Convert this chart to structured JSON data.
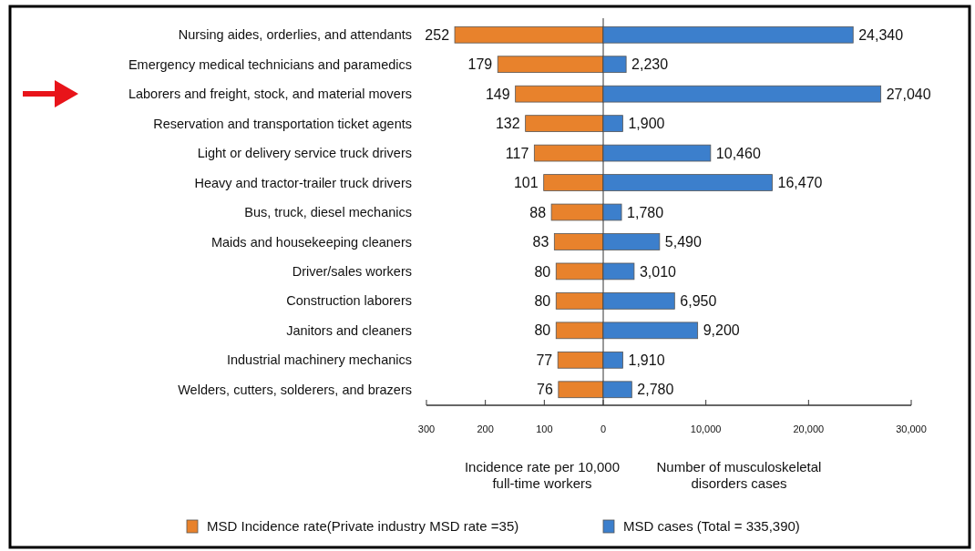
{
  "chart_data": [
    {
      "type": "bar",
      "orientation": "horizontal",
      "categories": [
        "Nursing aides, orderlies, and attendants",
        "Emergency medical technicians and paramedics",
        "Laborers and freight, stock, and material movers",
        "Reservation and transportation ticket agents",
        "Light or delivery service truck drivers",
        "Heavy and tractor-trailer truck drivers",
        "Bus, truck, diesel mechanics",
        "Maids and housekeeping cleaners",
        "Driver/sales workers",
        "Construction laborers",
        "Janitors and cleaners",
        "Industrial machinery mechanics",
        "Welders, cutters, solderers, and brazers"
      ],
      "series": [
        {
          "name": "MSD Incidence rate(Private industry  MSD rate =35)",
          "color": "#e8822c",
          "values": [
            252,
            179,
            149,
            132,
            117,
            101,
            88,
            83,
            80,
            80,
            80,
            77,
            76
          ]
        }
      ],
      "data_labels": true,
      "xlim": [
        300,
        0
      ],
      "xticks": [
        300,
        200,
        100,
        0
      ],
      "xlabel": "Incidence rate per 10,000 full-time workers",
      "legend": "bottom"
    },
    {
      "type": "bar",
      "orientation": "horizontal",
      "categories": [
        null,
        null,
        null,
        null,
        null,
        null,
        null,
        null,
        null,
        null,
        null,
        null,
        null
      ],
      "series": [
        {
          "name": "MSD cases (Total = 335,390)",
          "color": "#3c7fcc",
          "values": [
            24340,
            2230,
            27040,
            1900,
            10460,
            16470,
            1780,
            5490,
            3010,
            6950,
            9200,
            1910,
            2780
          ],
          "value_labels": [
            "24,340",
            "2,230",
            "27,040",
            "1,900",
            "10,460",
            "16,470",
            "1,780",
            "5,490",
            "3,010",
            "6,950",
            "9,200",
            "1,910",
            "2,780"
          ]
        }
      ],
      "xlim": [
        0,
        30000
      ],
      "xticks": [
        {
          "value": 10000,
          "label": "10,000"
        },
        {
          "value": 20000,
          "label": "20,000"
        },
        {
          "value": 30000,
          "label": "30,000"
        }
      ],
      "xlabel": "Number of musculoskeletal disorders cases",
      "tick_labels": "x",
      "legend": "bottom"
    }
  ]
}
